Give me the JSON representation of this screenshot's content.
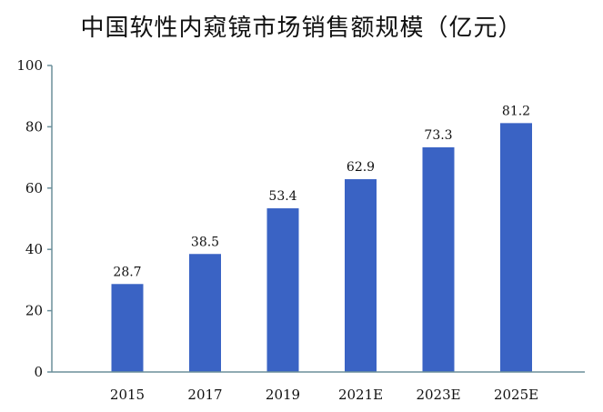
{
  "chart_data": {
    "type": "bar",
    "title": "中国软性内窥镜市场销售额规模（亿元）",
    "xlabel": "",
    "ylabel": "",
    "categories": [
      "2015",
      "2017",
      "2019",
      "2021E",
      "2023E",
      "2025E"
    ],
    "values": [
      28.7,
      38.5,
      53.4,
      62.9,
      73.3,
      81.2
    ],
    "value_labels": [
      "28.7",
      "38.5",
      "53.4",
      "62.9",
      "73.3",
      "81.2"
    ],
    "ylim": [
      0,
      100
    ],
    "yticks": [
      0,
      20,
      40,
      60,
      80,
      100
    ],
    "ytick_labels": [
      "0",
      "20",
      "40",
      "60",
      "80",
      "100"
    ],
    "grid": false,
    "legend": "none",
    "bar_color": "#3a63c4",
    "axis_color": "#6b8f9a"
  }
}
